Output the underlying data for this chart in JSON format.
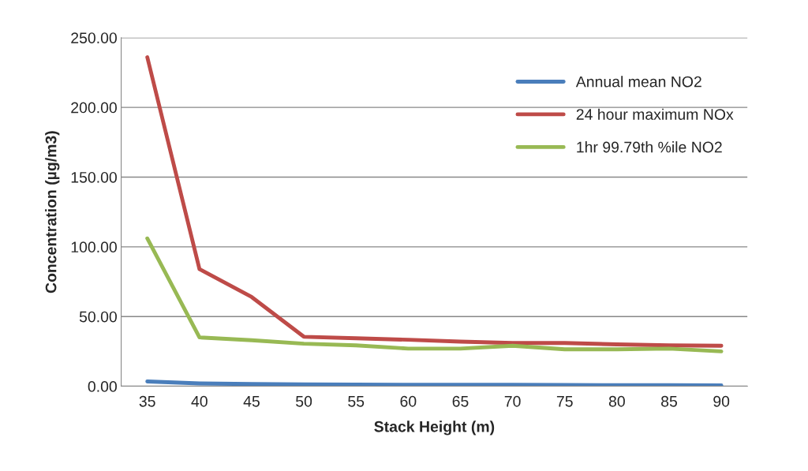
{
  "chart_data": {
    "type": "line",
    "xlabel": "Stack Height (m)",
    "ylabel": "Concentration (µg/m3)",
    "categories": [
      "35",
      "40",
      "45",
      "50",
      "55",
      "60",
      "65",
      "70",
      "75",
      "80",
      "85",
      "90"
    ],
    "series": [
      {
        "name": "Annual mean NO2",
        "color": "#4a7ebb",
        "values": [
          3.4,
          2,
          1.6,
          1.4,
          1.2,
          1.1,
          1,
          1,
          0.9,
          0.8,
          0.7,
          0.6
        ]
      },
      {
        "name": "24 hour maximum NOx",
        "color": "#be4b48",
        "values": [
          236,
          84,
          64,
          35.5,
          34.4,
          33.3,
          32,
          31,
          31,
          30,
          29.3,
          29
        ]
      },
      {
        "name": "1hr 99.79th %ile NO2",
        "color": "#98b954",
        "values": [
          106,
          35,
          33,
          30.5,
          29.3,
          27,
          27,
          29,
          26.5,
          26.5,
          27,
          25
        ]
      }
    ],
    "ylim": [
      0,
      250
    ],
    "yticks": [
      {
        "value": 0,
        "label": "0.00"
      },
      {
        "value": 50,
        "label": "50.00"
      },
      {
        "value": 100,
        "label": "100.00"
      },
      {
        "value": 150,
        "label": "150.00"
      },
      {
        "value": 200,
        "label": "200.00"
      },
      {
        "value": 250,
        "label": "250.00"
      }
    ],
    "grid": "y",
    "legend": "top right",
    "marker": "none",
    "line_style": "solid"
  }
}
